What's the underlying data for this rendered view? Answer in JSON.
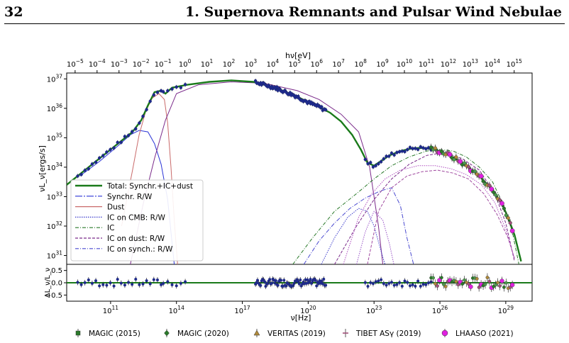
{
  "page": {
    "number": "32",
    "running_head": "1. Supernova Remnants and Pulsar Wind Nebulae"
  },
  "chart_data": {
    "type": "line",
    "top_axis_label": "hν[eV]",
    "top_ticks": [
      "10^-5",
      "10^-4",
      "10^-3",
      "10^-2",
      "10^-1",
      "10^0",
      "10^1",
      "10^2",
      "10^3",
      "10^4",
      "10^5",
      "10^6",
      "10^7",
      "10^8",
      "10^9",
      "10^10",
      "10^11",
      "10^12",
      "10^13",
      "10^14",
      "10^15"
    ],
    "ylabel": "νL_ν[ergs/s]",
    "y_ticks": [
      "10^31",
      "10^32",
      "10^33",
      "10^34",
      "10^35",
      "10^36",
      "10^37"
    ],
    "ylim": [
      30.7,
      37.2
    ],
    "xlim": [
      9.0,
      30.2
    ],
    "xlabel": "ν[Hz]",
    "x_ticks": [
      "10^11",
      "10^14",
      "10^17",
      "10^20",
      "10^23",
      "10^26",
      "10^29"
    ],
    "residual_ylabel": "ΔL_ν/L_ν",
    "residual_ticks": [
      "0.5",
      "0.0",
      "-0.5"
    ],
    "residual_ylim": [
      -0.75,
      0.75
    ],
    "legend": [
      {
        "label": "Total: Synchr.+IC+dust",
        "color": "#1a7a1a",
        "style": "solid-thick"
      },
      {
        "label": "Synchr. R/W",
        "color": "#2b35d6",
        "style": "dashdot-long"
      },
      {
        "label": "Dust",
        "color": "#c96a6a",
        "style": "solid"
      },
      {
        "label": "IC on CMB: R/W",
        "color": "#3a3acc",
        "style": "dotted"
      },
      {
        "label": "IC",
        "color": "#2a7a2a",
        "style": "dashdot"
      },
      {
        "label": "IC on dust: R/W",
        "color": "#7a2a8a",
        "style": "dashed"
      },
      {
        "label": "IC on synch.: R/W",
        "color": "#4a4ad0",
        "style": "dashdot"
      }
    ],
    "series": [
      {
        "name": "Total: Synchr.+IC+dust",
        "color": "#1a7a1a",
        "x": [
          9.0,
          10.0,
          11.0,
          12.0,
          12.4,
          12.7,
          13.0,
          13.3,
          13.5,
          13.8,
          14.5,
          15.5,
          16.5,
          17.5,
          18.5,
          19.5,
          20.0,
          20.5,
          21.0,
          21.5,
          22.0,
          22.4,
          22.7,
          23.0,
          23.3,
          23.7,
          24.2,
          24.8,
          25.3,
          25.8,
          26.3,
          26.8,
          27.3,
          27.8,
          28.3,
          28.8,
          29.1,
          29.4,
          29.7
        ],
        "y": [
          33.4,
          34.0,
          34.6,
          35.2,
          35.6,
          36.1,
          36.55,
          36.6,
          36.5,
          36.7,
          36.8,
          36.9,
          36.95,
          36.9,
          36.7,
          36.4,
          36.2,
          36.05,
          35.85,
          35.55,
          35.1,
          34.6,
          34.15,
          34.05,
          34.2,
          34.4,
          34.55,
          34.65,
          34.65,
          34.6,
          34.45,
          34.25,
          34.0,
          33.7,
          33.3,
          32.8,
          32.3,
          31.7,
          30.8
        ]
      },
      {
        "name": "Synchr. R/W (low)",
        "color": "#2b35d6",
        "x": [
          9.6,
          10.5,
          11.3,
          11.9,
          12.3,
          12.7,
          13.0,
          13.3,
          13.6,
          13.9
        ],
        "y": [
          33.7,
          34.2,
          34.7,
          35.1,
          35.25,
          35.2,
          34.8,
          34.1,
          32.9,
          30.7
        ]
      },
      {
        "name": "Dust",
        "color": "#c96a6a",
        "x": [
          11.5,
          12.0,
          12.3,
          12.6,
          12.9,
          13.2,
          13.45,
          13.6,
          13.75,
          13.9,
          14.05
        ],
        "y": [
          32.0,
          33.9,
          35.1,
          35.9,
          36.35,
          36.5,
          36.3,
          35.5,
          34.0,
          32.2,
          30.7
        ]
      },
      {
        "name": "Synchr. R/W (high)",
        "color": "#7a2a8a",
        "x": [
          11.9,
          12.5,
          13.0,
          13.5,
          14.0,
          15.0,
          16.5,
          18.0,
          19.5,
          20.5,
          21.5,
          22.3,
          22.8,
          23.2,
          23.4
        ],
        "y": [
          30.7,
          32.8,
          34.3,
          35.6,
          36.5,
          36.8,
          36.9,
          36.85,
          36.6,
          36.3,
          35.8,
          35.2,
          34.0,
          32.0,
          30.7
        ]
      },
      {
        "name": "IC",
        "color": "#2a7a2a",
        "x": [
          19.3,
          20.2,
          21.2,
          22.2,
          23.0,
          23.8,
          24.6,
          25.4,
          26.0,
          26.6,
          27.2,
          27.8,
          28.4,
          28.9,
          29.3,
          29.6
        ],
        "y": [
          30.7,
          31.6,
          32.5,
          33.1,
          33.6,
          34.05,
          34.35,
          34.55,
          34.6,
          34.55,
          34.35,
          34.0,
          33.5,
          32.7,
          31.8,
          30.7
        ]
      },
      {
        "name": "IC on CMB: R/W",
        "color": "#3a3acc",
        "x": [
          20.6,
          21.2,
          21.8,
          22.3,
          22.7,
          23.0,
          23.3,
          23.5
        ],
        "y": [
          30.7,
          31.6,
          32.3,
          32.6,
          32.5,
          32.0,
          31.2,
          30.7
        ]
      },
      {
        "name": "IC on synch.: R/W",
        "color": "#4a4ad0",
        "x": [
          19.8,
          20.5,
          21.2,
          21.9,
          22.6,
          23.3,
          23.8,
          24.2,
          24.5,
          24.8
        ],
        "y": [
          30.7,
          31.5,
          32.1,
          32.6,
          32.95,
          33.2,
          33.3,
          32.7,
          31.6,
          30.7
        ]
      },
      {
        "name": "IC on dust: R/W",
        "color": "#7a2a8a",
        "x": [
          21.2,
          22.2,
          23.0,
          23.8,
          24.6,
          25.4,
          26.2,
          27.0,
          27.8,
          28.5,
          29.0,
          29.4
        ],
        "y": [
          30.7,
          32.0,
          32.9,
          33.6,
          34.1,
          34.4,
          34.5,
          34.3,
          33.9,
          33.1,
          32.1,
          30.8
        ]
      },
      {
        "name": "IC on dust: R/W (2)",
        "color": "#a04aa0",
        "x": [
          22.7,
          23.2,
          23.8,
          24.5,
          25.2,
          25.9,
          26.6,
          27.3,
          28.0,
          28.6,
          29.1,
          29.4
        ],
        "y": [
          30.7,
          32.5,
          33.3,
          33.7,
          33.85,
          33.9,
          33.8,
          33.6,
          33.1,
          32.4,
          31.6,
          30.9
        ]
      },
      {
        "name": "IC on CMB: R/W (2)",
        "color": "#b050c0",
        "x": [
          21.6,
          22.3,
          22.9,
          23.5,
          24.2,
          25.0,
          25.8,
          26.5,
          27.2,
          27.9,
          28.5,
          29.0,
          29.4
        ],
        "y": [
          30.7,
          32.3,
          33.1,
          33.6,
          33.9,
          34.05,
          34.05,
          33.95,
          33.75,
          33.4,
          32.8,
          31.9,
          30.9
        ]
      },
      {
        "name": "IC on CMB: R/W (3)",
        "color": "#9a55c8",
        "x": [
          22.2,
          22.6,
          23.0,
          23.4,
          23.7,
          23.9
        ],
        "y": [
          30.7,
          31.8,
          32.5,
          32.2,
          31.4,
          30.7
        ]
      }
    ],
    "observations": [
      {
        "name": "MAGIC (2015)",
        "color": "#2a7a2a",
        "marker": "square"
      },
      {
        "name": "MAGIC (2020)",
        "color": "#2a7a2a",
        "marker": "diamond"
      },
      {
        "name": "VERITAS (2019)",
        "color": "#b08a3a",
        "marker": "triangle"
      },
      {
        "name": "TIBET ASγ (2019)",
        "color": "#a0507a",
        "marker": "plus"
      },
      {
        "name": "LHAASO (2021)",
        "color": "#e020e0",
        "marker": "circle"
      }
    ]
  }
}
